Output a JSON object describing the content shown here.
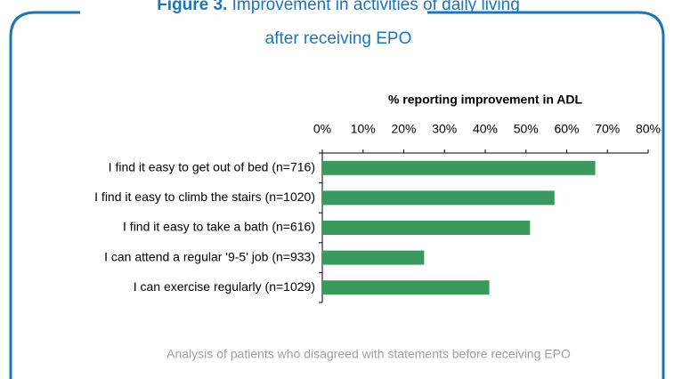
{
  "chart_data": {
    "type": "hbar",
    "figure_label": "Figure 3.",
    "title": [
      "Improvement in activities of daily living",
      "after receiving EPO"
    ],
    "axis_title": "% reporting improvement in ADL",
    "footnote": "Analysis of patients who disagreed with statements before receiving EPO",
    "categories": [
      "I find it easy to get out of bed (n=716)",
      "I find it easy to climb the stairs (n=1020)",
      "I find it easy to take a bath (n=616)",
      "I can attend a regular '9-5' job (n=933)",
      "I can exercise regularly (n=1029)"
    ],
    "values": [
      67,
      57,
      51,
      25,
      41
    ],
    "color": "#3a9a5e",
    "xlim": [
      0,
      80
    ],
    "xticks": [
      {
        "value": 0,
        "label": "0%"
      },
      {
        "value": 10,
        "label": "10%"
      },
      {
        "value": 20,
        "label": "20%"
      },
      {
        "value": 30,
        "label": "30%"
      },
      {
        "value": 40,
        "label": "40%"
      },
      {
        "value": 50,
        "label": "50%"
      },
      {
        "value": 60,
        "label": "60%"
      },
      {
        "value": 70,
        "label": "70%"
      },
      {
        "value": 80,
        "label": "80%"
      }
    ],
    "grid": false
  }
}
